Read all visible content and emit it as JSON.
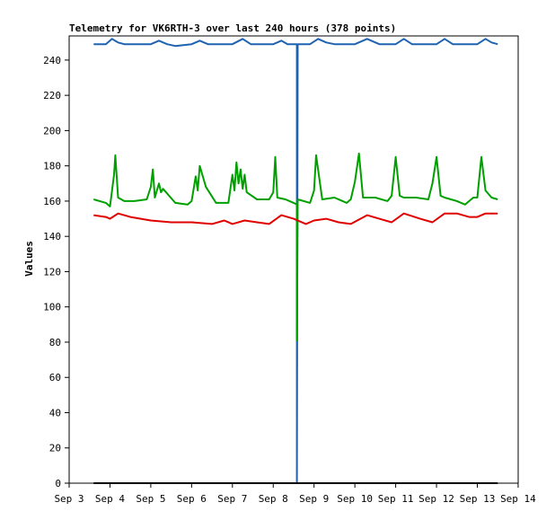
{
  "chart_data": {
    "type": "line",
    "title": "Telemetry for VK6RTH-3 over last 240 hours (378 points)",
    "xlabel": "",
    "ylabel": "Values",
    "x_ticks": [
      "Sep 3",
      "Sep 4",
      "Sep 5",
      "Sep 6",
      "Sep 7",
      "Sep 8",
      "Sep 9",
      "Sep 10",
      "Sep 11",
      "Sep 12",
      "Sep 13",
      "Sep 14"
    ],
    "xlim": [
      3.0,
      14.0
    ],
    "ylim": [
      0,
      250
    ],
    "y_ticks": [
      0,
      20,
      40,
      60,
      80,
      100,
      120,
      140,
      160,
      180,
      200,
      220,
      240
    ],
    "grid": false,
    "legend": "none",
    "series": [
      {
        "color": "#1f63b0",
        "x": [
          3.6,
          3.9,
          4.05,
          4.2,
          4.35,
          4.6,
          5.0,
          5.2,
          5.4,
          5.6,
          6.0,
          6.2,
          6.4,
          6.7,
          7.0,
          7.25,
          7.45,
          7.7,
          8.0,
          8.2,
          8.35,
          8.5,
          8.58,
          8.58,
          8.6,
          8.9,
          9.1,
          9.3,
          9.5,
          9.8,
          10.0,
          10.3,
          10.6,
          11.0,
          11.2,
          11.4,
          11.8,
          12.0,
          12.2,
          12.4,
          12.8,
          13.0,
          13.2,
          13.35,
          13.5
        ],
        "values": [
          249,
          249,
          252,
          250,
          249,
          249,
          249,
          251,
          249,
          248,
          249,
          251,
          249,
          249,
          249,
          252,
          249,
          249,
          249,
          251,
          249,
          249,
          249,
          0,
          249,
          249,
          252,
          250,
          249,
          249,
          249,
          252,
          249,
          249,
          252,
          249,
          249,
          249,
          252,
          249,
          249,
          249,
          252,
          250,
          249
        ]
      },
      {
        "color": "#00a000",
        "x": [
          3.6,
          3.9,
          4.0,
          4.1,
          4.13,
          4.2,
          4.35,
          4.6,
          4.9,
          5.0,
          5.05,
          5.1,
          5.2,
          5.25,
          5.3,
          5.6,
          5.9,
          6.0,
          6.1,
          6.15,
          6.2,
          6.3,
          6.35,
          6.6,
          6.9,
          7.0,
          7.05,
          7.1,
          7.15,
          7.2,
          7.25,
          7.3,
          7.35,
          7.6,
          7.9,
          8.0,
          8.05,
          8.1,
          8.3,
          8.5,
          8.58,
          8.58,
          8.6,
          8.9,
          9.0,
          9.05,
          9.2,
          9.5,
          9.8,
          9.9,
          10.0,
          10.1,
          10.2,
          10.5,
          10.8,
          10.9,
          11.0,
          11.1,
          11.2,
          11.5,
          11.8,
          11.9,
          12.0,
          12.1,
          12.2,
          12.5,
          12.7,
          12.8,
          12.9,
          13.0,
          13.1,
          13.2,
          13.35,
          13.5
        ],
        "values": [
          161,
          159,
          157,
          175,
          186,
          162,
          160,
          160,
          161,
          168,
          178,
          162,
          170,
          165,
          167,
          159,
          158,
          160,
          174,
          166,
          180,
          172,
          168,
          159,
          159,
          175,
          166,
          182,
          170,
          178,
          167,
          175,
          165,
          161,
          161,
          165,
          185,
          162,
          161,
          159,
          158,
          81,
          161,
          159,
          166,
          186,
          161,
          162,
          159,
          161,
          171,
          187,
          162,
          162,
          160,
          163,
          185,
          163,
          162,
          162,
          161,
          170,
          185,
          163,
          162,
          160,
          158,
          160,
          162,
          162,
          185,
          166,
          162,
          161
        ]
      },
      {
        "color": "#e00000",
        "x": [
          3.6,
          3.9,
          4.0,
          4.2,
          4.5,
          5.0,
          5.5,
          6.0,
          6.5,
          6.8,
          7.0,
          7.3,
          7.6,
          7.9,
          8.2,
          8.5,
          8.8,
          9.0,
          9.3,
          9.6,
          9.9,
          10.3,
          10.6,
          10.9,
          11.2,
          11.6,
          11.9,
          12.2,
          12.5,
          12.8,
          13.0,
          13.2,
          13.5
        ],
        "values": [
          152,
          151,
          150,
          153,
          151,
          149,
          148,
          148,
          147,
          149,
          147,
          149,
          148,
          147,
          152,
          150,
          147,
          149,
          150,
          148,
          147,
          152,
          150,
          148,
          153,
          150,
          148,
          153,
          153,
          151,
          151,
          153,
          153
        ]
      },
      {
        "color": "#000000",
        "x": [
          3.6,
          13.5
        ],
        "values": [
          0,
          0
        ]
      }
    ]
  }
}
